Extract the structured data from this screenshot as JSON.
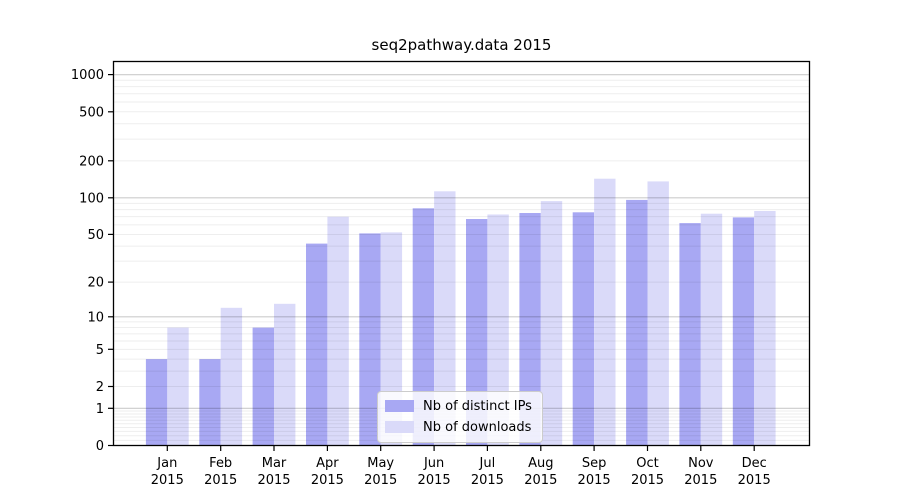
{
  "chart_data": {
    "type": "bar",
    "title": "seq2pathway.data 2015",
    "scale": "log1p",
    "grid": true,
    "legend_position": "lower center",
    "categories": [
      "Jan",
      "Feb",
      "Mar",
      "Apr",
      "May",
      "Jun",
      "Jul",
      "Aug",
      "Sep",
      "Oct",
      "Nov",
      "Dec"
    ],
    "x_tick_year": "2015",
    "series": [
      {
        "name": "Nb of distinct IPs",
        "color": "#a8a8f3",
        "values": [
          4,
          4,
          8,
          42,
          51,
          82,
          67,
          75,
          76,
          96,
          62,
          69
        ]
      },
      {
        "name": "Nb of downloads",
        "color": "#dadaf9",
        "values": [
          8,
          12,
          13,
          70,
          52,
          113,
          73,
          94,
          143,
          136,
          74,
          78
        ]
      }
    ],
    "y_ticks": [
      0,
      1,
      2,
      5,
      10,
      20,
      50,
      100,
      200,
      500,
      1000
    ],
    "ylim": [
      0,
      1300
    ],
    "xlabel": "",
    "ylabel": "",
    "colors": {
      "bar_distinct_ips": "#a8a8f3",
      "bar_downloads": "#dadaf9",
      "grid_major": "rgba(0,0,0,0.20)",
      "grid_minor": "rgba(0,0,0,0.065)",
      "axis": "#000000",
      "legend_border": "#cccccc"
    }
  }
}
